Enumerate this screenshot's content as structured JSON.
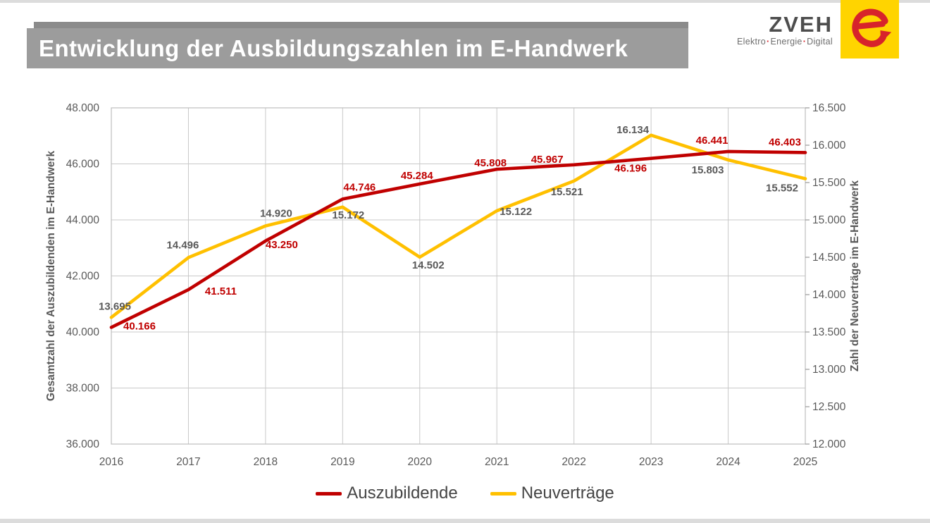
{
  "page": {
    "title": "Entwicklung der Ausbildungszahlen im E-Handwerk"
  },
  "logo": {
    "name": "ZVEH",
    "tagline_parts": [
      "Elektro",
      "Energie",
      "Digital"
    ],
    "separator": "·",
    "colors": {
      "square_yellow": "#ffd400",
      "mark_red": "#d7232b",
      "name_text": "#4d4d4d",
      "tagline_text": "#6e6e6e"
    }
  },
  "chart_data": {
    "type": "line",
    "x": [
      2016,
      2017,
      2018,
      2019,
      2020,
      2021,
      2022,
      2023,
      2024,
      2025
    ],
    "series": [
      {
        "name": "Auszubildende",
        "axis": "left",
        "color": "#c00000",
        "values": [
          40166,
          41511,
          43250,
          44746,
          45284,
          45808,
          45967,
          46196,
          46441,
          46403
        ],
        "labels": [
          "40.166",
          "41.511",
          "43.250",
          "44.746",
          "45.284",
          "45.808",
          "45.967",
          "46.196",
          "46.441",
          "46.403"
        ],
        "label_color": "#c00000",
        "label_offsets": [
          [
            40,
            -2
          ],
          [
            46,
            2
          ],
          [
            23,
            5
          ],
          [
            24,
            -17
          ],
          [
            -4,
            -12
          ],
          [
            -9,
            -9
          ],
          [
            -38,
            -8
          ],
          [
            -29,
            14
          ],
          [
            -23,
            -16
          ],
          [
            -29,
            -15
          ]
        ]
      },
      {
        "name": "Neuverträge",
        "axis": "right",
        "color": "#ffc000",
        "values": [
          13695,
          14496,
          14920,
          15172,
          14502,
          15122,
          15521,
          16134,
          15803,
          15552
        ],
        "labels": [
          "13.695",
          "14.496",
          "14.920",
          "15.172",
          "14.502",
          "15.122",
          "15.521",
          "16.134",
          "15.803",
          "15.552"
        ],
        "label_color": "#595959",
        "label_offsets": [
          [
            5,
            -16
          ],
          [
            -8,
            -18
          ],
          [
            15,
            -18
          ],
          [
            8,
            11
          ],
          [
            12,
            11
          ],
          [
            27,
            1
          ],
          [
            -10,
            15
          ],
          [
            -26,
            -8
          ],
          [
            -29,
            14
          ],
          [
            -33,
            13
          ]
        ]
      }
    ],
    "axes": {
      "x": {
        "tick_labels": [
          "2016",
          "2017",
          "2018",
          "2019",
          "2020",
          "2021",
          "2022",
          "2023",
          "2024",
          "2025"
        ]
      },
      "left": {
        "title": "Gesamtzahl der Auszubildenden im E-Handwerk",
        "min": 36000,
        "max": 48000,
        "tick_values": [
          36000,
          38000,
          40000,
          42000,
          44000,
          46000,
          48000
        ],
        "tick_labels": [
          "36.000",
          "38.000",
          "40.000",
          "42.000",
          "44.000",
          "46.000",
          "48.000"
        ]
      },
      "right": {
        "title": "Zahl der Neuverträge im E-Handwerk",
        "min": 12000,
        "max": 16500,
        "tick_values": [
          12000,
          12500,
          13000,
          13500,
          14000,
          14500,
          15000,
          15500,
          16000,
          16500
        ],
        "tick_labels": [
          "12.000",
          "12.500",
          "13.000",
          "13.500",
          "14.000",
          "14.500",
          "15.000",
          "15.500",
          "16.000",
          "16.500"
        ]
      }
    },
    "grid": true,
    "grid_color": "#c8c8c8",
    "tick_text_color": "#595959",
    "legend_position": "bottom"
  }
}
